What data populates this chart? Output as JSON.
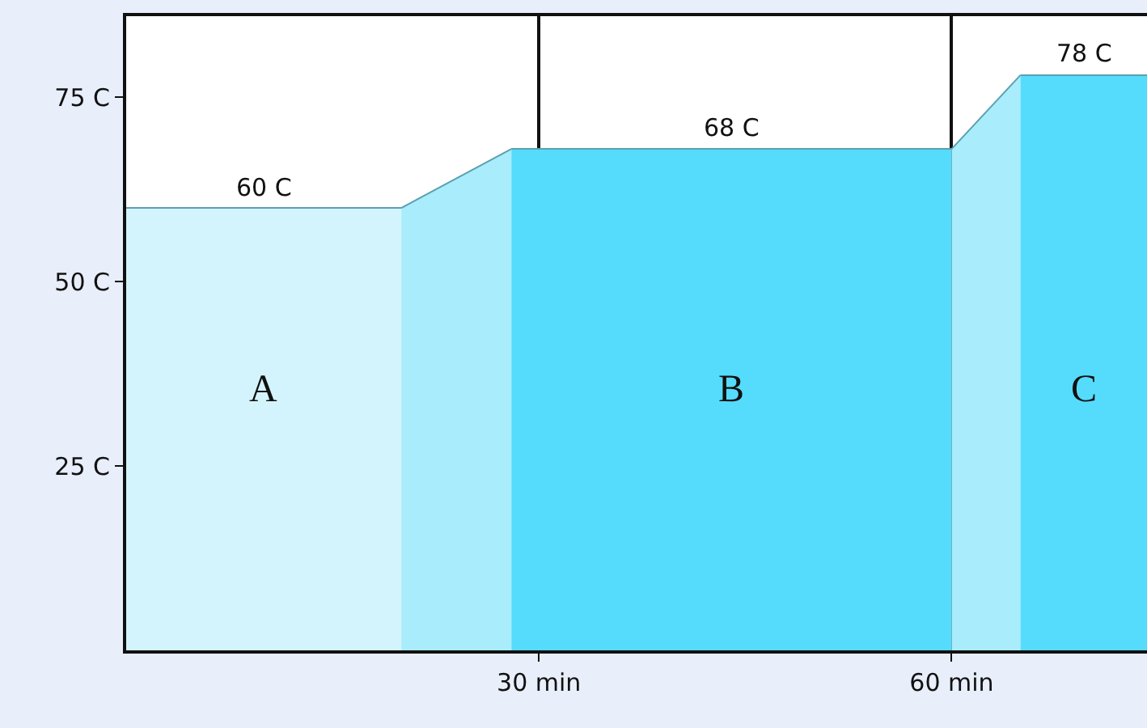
{
  "chart_data": {
    "type": "area",
    "series": [
      {
        "name": "A",
        "color": "#d4f4fd",
        "x": [
          0,
          20
        ],
        "values": [
          60,
          60
        ]
      },
      {
        "color": "#a9ecfb",
        "x": [
          20,
          28
        ],
        "values": [
          60,
          68
        ]
      },
      {
        "name": "B",
        "color": "#55dcfc",
        "x": [
          28,
          60
        ],
        "values": [
          68,
          68
        ]
      },
      {
        "color": "#a9ecfb",
        "x": [
          60,
          65
        ],
        "values": [
          68,
          78
        ]
      },
      {
        "name": "C",
        "color": "#55dcfc",
        "x": [
          65,
          74.2
        ],
        "values": [
          78,
          78
        ]
      }
    ],
    "annotations": [
      {
        "text": "60 C",
        "x": 10,
        "y": 60
      },
      {
        "text": "68 C",
        "x": 44,
        "y": 68
      },
      {
        "text": "78 C",
        "x": 69.6,
        "y": 78
      }
    ],
    "xlim": [
      0,
      74.2
    ],
    "ylim": [
      0,
      86
    ],
    "xticks": [
      {
        "value": 30,
        "label": "30 min"
      },
      {
        "value": 60,
        "label": "60 min"
      }
    ],
    "yticks": [
      {
        "value": 25,
        "label": "25 C"
      },
      {
        "value": 50,
        "label": "50 C"
      },
      {
        "value": 75,
        "label": "75 C"
      }
    ],
    "grid": "x",
    "legend": false
  }
}
